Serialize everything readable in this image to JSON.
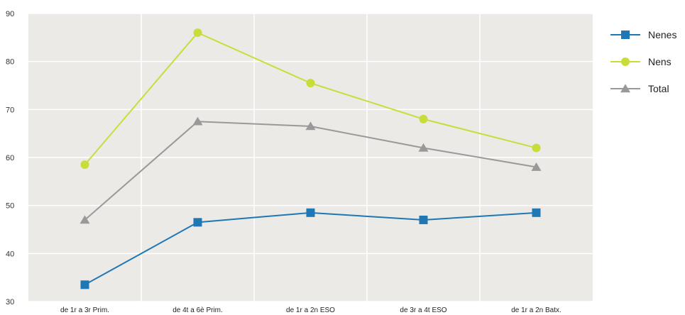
{
  "chart_data": {
    "type": "line",
    "categories": [
      "de 1r a 3r Prim.",
      "de 4t a 6è Prim.",
      "de 1r a 2n ESO",
      "de 3r a 4t ESO",
      "de 1r a 2n Batx."
    ],
    "series": [
      {
        "name": "Nenes",
        "values": [
          33.5,
          46.5,
          48.5,
          47.0,
          48.5
        ],
        "color": "#1F77B4",
        "marker": "square"
      },
      {
        "name": "Nens",
        "values": [
          58.5,
          86.0,
          75.5,
          68.0,
          62.0
        ],
        "color": "#C8DD3A",
        "marker": "circle"
      },
      {
        "name": "Total",
        "values": [
          47.0,
          67.5,
          66.5,
          62.0,
          58.0
        ],
        "color": "#999999",
        "marker": "triangle"
      }
    ],
    "yticks": [
      "30",
      "40",
      "50",
      "60",
      "70",
      "80",
      "90"
    ],
    "ylim": [
      30,
      90
    ],
    "grid": true,
    "background": "#ECEAE6",
    "legend_position": "right"
  }
}
